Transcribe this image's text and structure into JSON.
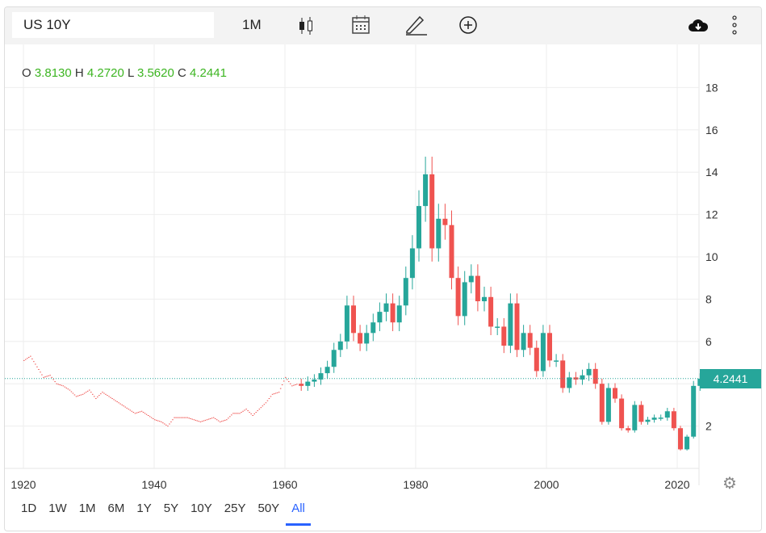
{
  "toolbar": {
    "symbol": "US 10Y",
    "interval": "1M",
    "icons": [
      "candlestick-icon",
      "calendar-icon",
      "pencil-icon",
      "plus-circle-icon",
      "cloud-download-icon",
      "more-vertical-icon"
    ]
  },
  "ohlc": {
    "o_label": "O",
    "o": "3.8130",
    "h_label": "H",
    "h": "4.2720",
    "l_label": "L",
    "l": "3.5620",
    "c_label": "C",
    "c": "4.2441"
  },
  "price_tag": "4.2441",
  "ranges": [
    "1D",
    "1W",
    "1M",
    "6M",
    "1Y",
    "5Y",
    "10Y",
    "25Y",
    "50Y",
    "All"
  ],
  "active_range": "All",
  "colors": {
    "up": "#26a69a",
    "down": "#ef5350",
    "accent": "#2962ff"
  },
  "chart_data": {
    "type": "candlestick",
    "title": "",
    "xlabel": "",
    "ylabel": "",
    "x_ticks": [
      "1920",
      "1940",
      "1960",
      "1980",
      "2000",
      "2020"
    ],
    "y_ticks": [
      "2",
      "4",
      "6",
      "8",
      "10",
      "12",
      "14",
      "16",
      "18"
    ],
    "ylim": [
      0,
      19.5
    ],
    "xlim": [
      1919,
      2026
    ],
    "grid": true,
    "last_value": 4.2441,
    "years": [
      1920,
      1921,
      1922,
      1923,
      1924,
      1925,
      1926,
      1927,
      1928,
      1929,
      1930,
      1931,
      1932,
      1933,
      1934,
      1935,
      1936,
      1937,
      1938,
      1939,
      1940,
      1941,
      1942,
      1943,
      1944,
      1945,
      1946,
      1947,
      1948,
      1949,
      1950,
      1951,
      1952,
      1953,
      1954,
      1955,
      1956,
      1957,
      1958,
      1959,
      1960,
      1961,
      1962,
      1963,
      1964,
      1965,
      1966,
      1967,
      1968,
      1969,
      1970,
      1971,
      1972,
      1973,
      1974,
      1975,
      1976,
      1977,
      1978,
      1979,
      1980,
      1981,
      1982,
      1983,
      1984,
      1985,
      1986,
      1987,
      1988,
      1989,
      1990,
      1991,
      1992,
      1993,
      1994,
      1995,
      1996,
      1997,
      1998,
      1999,
      2000,
      2001,
      2002,
      2003,
      2004,
      2005,
      2006,
      2007,
      2008,
      2009,
      2010,
      2011,
      2012,
      2013,
      2014,
      2015,
      2016,
      2017,
      2018,
      2019,
      2020,
      2021,
      2022,
      2023
    ],
    "close": [
      5.3,
      4.8,
      4.3,
      4.4,
      4.0,
      3.9,
      3.7,
      3.4,
      3.5,
      3.7,
      3.3,
      3.6,
      3.4,
      3.2,
      3.0,
      2.8,
      2.6,
      2.7,
      2.5,
      2.3,
      2.2,
      2.0,
      2.4,
      2.4,
      2.4,
      2.3,
      2.2,
      2.3,
      2.4,
      2.2,
      2.3,
      2.6,
      2.6,
      2.8,
      2.5,
      2.8,
      3.1,
      3.5,
      3.6,
      4.3,
      3.9,
      4.0,
      3.9,
      4.1,
      4.2,
      4.5,
      4.8,
      5.6,
      6.0,
      7.7,
      6.4,
      5.9,
      6.4,
      6.9,
      7.4,
      7.8,
      6.9,
      7.7,
      9.0,
      10.4,
      12.4,
      13.9,
      10.4,
      11.8,
      11.5,
      9.0,
      7.2,
      8.8,
      9.1,
      7.9,
      8.1,
      6.7,
      6.7,
      5.8,
      7.8,
      5.6,
      6.4,
      5.7,
      4.6,
      6.4,
      5.1,
      5.1,
      3.8,
      4.3,
      4.2,
      4.4,
      4.7,
      4.0,
      2.2,
      3.8,
      3.3,
      1.9,
      1.8,
      3.0,
      2.2,
      2.3,
      2.4,
      2.4,
      2.7,
      1.9,
      0.9,
      1.5,
      3.9,
      4.24
    ]
  }
}
